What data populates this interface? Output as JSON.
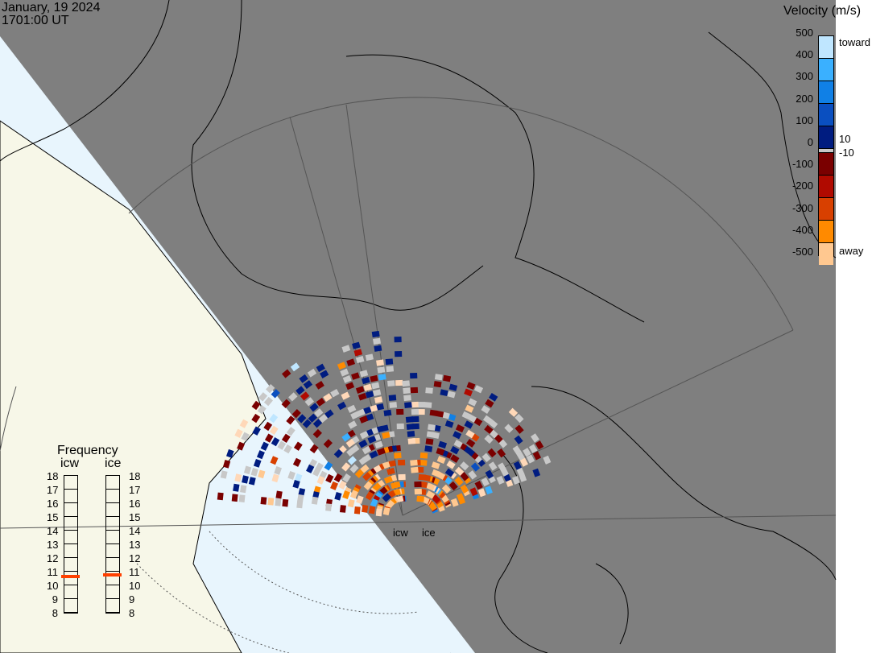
{
  "header": {
    "date": "January, 19 2024",
    "time": "1701:00 UT"
  },
  "colorbar": {
    "title": "Velocity (m/s)",
    "ticks": [
      "500",
      "400",
      "300",
      "200",
      "100",
      "0",
      "-100",
      "-200",
      "-300",
      "-400",
      "-500"
    ],
    "toward_label": "toward",
    "away_label": "away",
    "pos_threshold": "10",
    "neg_threshold": "-10",
    "toward_colors": [
      "#bfe6ff",
      "#3ab0ff",
      "#1080e6",
      "#0a4fc0",
      "#001c80"
    ],
    "away_colors": [
      "#7a0000",
      "#b00a00",
      "#d84000",
      "#ff8a00",
      "#ffc890"
    ],
    "zero_color": "#c8c8c8"
  },
  "frequency": {
    "title": "Frequency",
    "radars": [
      {
        "name": "icw",
        "value_mhz": 10.6
      },
      {
        "name": "ice",
        "value_mhz": 10.7
      }
    ],
    "ticks": [
      "18",
      "17",
      "16",
      "15",
      "14",
      "13",
      "12",
      "11",
      "10",
      "9",
      "8"
    ],
    "marker_color": "#ff4000"
  },
  "radar_labels": [
    "icw",
    "ice"
  ],
  "colors": {
    "night": "#7f7f7f",
    "ocean_day": "#e8f5fd",
    "land_day": "#f7f7e8",
    "ground_scatter": "#c8c8c8"
  }
}
